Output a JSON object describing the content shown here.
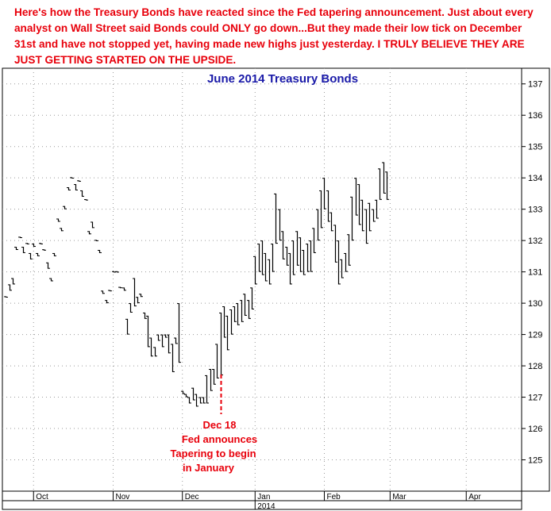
{
  "header": {
    "text": "Here's how the Treasury Bonds have reacted since the Fed tapering announcement. Just about every analyst on Wall Street said Bonds could ONLY go down...But they made their low tick on December 31st and have not stopped yet, having made new highs just yesterday. I TRULY BELIEVE THEY ARE JUST GETTING STARTED ON THE UPSIDE."
  },
  "chart_data": {
    "type": "ohlc",
    "title": "June 2014 Treasury Bonds",
    "ylim": [
      124,
      137.5
    ],
    "yticks": [
      125,
      126,
      127,
      128,
      129,
      130,
      131,
      132,
      133,
      134,
      135,
      136,
      137
    ],
    "x_months": [
      {
        "label": "Oct",
        "index": 8
      },
      {
        "label": "Nov",
        "index": 31
      },
      {
        "label": "Dec",
        "index": 51
      },
      {
        "label": "Jan",
        "index": 72
      },
      {
        "label": "Feb",
        "index": 92
      },
      {
        "label": "Mar",
        "index": 111
      },
      {
        "label": "Apr",
        "index": 133
      }
    ],
    "x_year": {
      "label": "2014",
      "index": 72
    },
    "x_range": [
      -1,
      149
    ],
    "grid": true,
    "bar_color": "#000000",
    "annotation_color": "#e8000b",
    "annotation": {
      "index": 62,
      "price": 127.8,
      "lines": [
        "Dec 18",
        "Fed announces",
        "Tapering to begin",
        "in January"
      ]
    },
    "bars": [
      {
        "i": 0,
        "h": 130.2,
        "l": 130.2
      },
      {
        "i": 1,
        "h": 130.6,
        "l": 130.4
      },
      {
        "i": 2,
        "h": 130.8,
        "l": 130.6
      },
      {
        "i": 3,
        "h": 131.8,
        "l": 131.7
      },
      {
        "i": 4,
        "h": 132.1,
        "l": 132.1
      },
      {
        "i": 5,
        "h": 131.8,
        "l": 131.6
      },
      {
        "i": 6,
        "h": 131.9,
        "l": 131.9
      },
      {
        "i": 7,
        "h": 131.6,
        "l": 131.4
      },
      {
        "i": 8,
        "h": 131.9,
        "l": 131.8
      },
      {
        "i": 9,
        "h": 131.6,
        "l": 131.5
      },
      {
        "i": 10,
        "h": 131.9,
        "l": 131.9
      },
      {
        "i": 11,
        "h": 131.7,
        "l": 131.7
      },
      {
        "i": 12,
        "h": 131.3,
        "l": 131.1
      },
      {
        "i": 13,
        "h": 130.8,
        "l": 130.7
      },
      {
        "i": 14,
        "h": 131.6,
        "l": 131.5
      },
      {
        "i": 15,
        "h": 132.7,
        "l": 132.6
      },
      {
        "i": 16,
        "h": 132.4,
        "l": 132.3
      },
      {
        "i": 17,
        "h": 133.1,
        "l": 133.0
      },
      {
        "i": 18,
        "h": 133.7,
        "l": 133.6
      },
      {
        "i": 19,
        "h": 134.0,
        "l": 134.0
      },
      {
        "i": 20,
        "h": 133.8,
        "l": 133.6
      },
      {
        "i": 21,
        "h": 133.9,
        "l": 133.9
      },
      {
        "i": 22,
        "h": 133.6,
        "l": 133.4
      },
      {
        "i": 23,
        "h": 133.3,
        "l": 133.3
      },
      {
        "i": 24,
        "h": 132.3,
        "l": 132.2
      },
      {
        "i": 25,
        "h": 132.6,
        "l": 132.4
      },
      {
        "i": 26,
        "h": 132.0,
        "l": 132.0
      },
      {
        "i": 27,
        "h": 131.7,
        "l": 131.6
      },
      {
        "i": 28,
        "h": 130.4,
        "l": 130.3
      },
      {
        "i": 29,
        "h": 130.1,
        "l": 130.0
      },
      {
        "i": 30,
        "h": 130.4,
        "l": 130.4
      },
      {
        "i": 31,
        "h": 131.0,
        "l": 131.0
      },
      {
        "i": 32,
        "h": 131.0,
        "l": 131.0
      },
      {
        "i": 33,
        "h": 130.5,
        "l": 130.5
      },
      {
        "i": 34,
        "h": 130.5,
        "l": 130.4
      },
      {
        "i": 35,
        "h": 129.5,
        "l": 129.0
      },
      {
        "i": 36,
        "h": 130.0,
        "l": 129.7
      },
      {
        "i": 37,
        "h": 130.8,
        "l": 129.9
      },
      {
        "i": 38,
        "h": 130.2,
        "l": 130.0
      },
      {
        "i": 39,
        "h": 130.3,
        "l": 130.2
      },
      {
        "i": 40,
        "h": 129.7,
        "l": 129.5
      },
      {
        "i": 41,
        "h": 129.6,
        "l": 128.6
      },
      {
        "i": 42,
        "h": 128.9,
        "l": 128.3
      },
      {
        "i": 43,
        "h": 128.6,
        "l": 128.3
      },
      {
        "i": 44,
        "h": 129.0,
        "l": 128.8
      },
      {
        "i": 45,
        "h": 129.0,
        "l": 128.6
      },
      {
        "i": 46,
        "h": 129.0,
        "l": 128.9
      },
      {
        "i": 47,
        "h": 129.0,
        "l": 128.4
      },
      {
        "i": 48,
        "h": 128.7,
        "l": 127.8
      },
      {
        "i": 49,
        "h": 128.9,
        "l": 128.7
      },
      {
        "i": 50,
        "h": 130.0,
        "l": 128.1
      },
      {
        "i": 51,
        "h": 127.2,
        "l": 127.1
      },
      {
        "i": 52,
        "h": 127.1,
        "l": 127.0
      },
      {
        "i": 53,
        "h": 127.0,
        "l": 126.8
      },
      {
        "i": 54,
        "h": 127.3,
        "l": 126.9
      },
      {
        "i": 55,
        "h": 127.1,
        "l": 126.7
      },
      {
        "i": 56,
        "h": 127.0,
        "l": 126.8
      },
      {
        "i": 57,
        "h": 127.0,
        "l": 126.8
      },
      {
        "i": 58,
        "h": 127.7,
        "l": 126.8
      },
      {
        "i": 59,
        "h": 127.9,
        "l": 127.2
      },
      {
        "i": 60,
        "h": 127.9,
        "l": 127.4
      },
      {
        "i": 61,
        "h": 128.7,
        "l": 127.6
      },
      {
        "i": 62,
        "h": 129.7,
        "l": 127.7
      },
      {
        "i": 63,
        "h": 129.9,
        "l": 128.9
      },
      {
        "i": 64,
        "h": 129.6,
        "l": 128.5
      },
      {
        "i": 65,
        "h": 129.8,
        "l": 129.0
      },
      {
        "i": 66,
        "h": 129.9,
        "l": 129.4
      },
      {
        "i": 67,
        "h": 130.0,
        "l": 129.3
      },
      {
        "i": 68,
        "h": 130.1,
        "l": 129.4
      },
      {
        "i": 69,
        "h": 130.3,
        "l": 129.6
      },
      {
        "i": 70,
        "h": 130.1,
        "l": 129.5
      },
      {
        "i": 71,
        "h": 130.5,
        "l": 129.8
      },
      {
        "i": 72,
        "h": 131.5,
        "l": 130.6
      },
      {
        "i": 73,
        "h": 131.9,
        "l": 131.0
      },
      {
        "i": 74,
        "h": 132.0,
        "l": 130.9
      },
      {
        "i": 75,
        "h": 131.6,
        "l": 130.7
      },
      {
        "i": 76,
        "h": 131.4,
        "l": 130.6
      },
      {
        "i": 77,
        "h": 131.9,
        "l": 131.0
      },
      {
        "i": 78,
        "h": 133.5,
        "l": 131.9
      },
      {
        "i": 79,
        "h": 133.0,
        "l": 132.0
      },
      {
        "i": 80,
        "h": 132.3,
        "l": 131.4
      },
      {
        "i": 81,
        "h": 131.8,
        "l": 131.2
      },
      {
        "i": 82,
        "h": 131.6,
        "l": 130.6
      },
      {
        "i": 83,
        "h": 132.0,
        "l": 130.9
      },
      {
        "i": 84,
        "h": 132.3,
        "l": 131.2
      },
      {
        "i": 85,
        "h": 132.1,
        "l": 131.0
      },
      {
        "i": 86,
        "h": 131.7,
        "l": 130.9
      },
      {
        "i": 87,
        "h": 131.9,
        "l": 131.0
      },
      {
        "i": 88,
        "h": 132.0,
        "l": 131.0
      },
      {
        "i": 89,
        "h": 132.4,
        "l": 131.6
      },
      {
        "i": 90,
        "h": 133.0,
        "l": 132.0
      },
      {
        "i": 91,
        "h": 133.6,
        "l": 132.4
      },
      {
        "i": 92,
        "h": 134.0,
        "l": 133.0
      },
      {
        "i": 93,
        "h": 133.6,
        "l": 132.6
      },
      {
        "i": 94,
        "h": 132.9,
        "l": 132.3
      },
      {
        "i": 95,
        "h": 132.5,
        "l": 131.3
      },
      {
        "i": 96,
        "h": 132.0,
        "l": 130.6
      },
      {
        "i": 97,
        "h": 131.4,
        "l": 130.8
      },
      {
        "i": 98,
        "h": 131.6,
        "l": 131.0
      },
      {
        "i": 99,
        "h": 132.2,
        "l": 131.2
      },
      {
        "i": 100,
        "h": 133.4,
        "l": 132.0
      },
      {
        "i": 101,
        "h": 134.0,
        "l": 132.8
      },
      {
        "i": 102,
        "h": 133.8,
        "l": 132.5
      },
      {
        "i": 103,
        "h": 133.3,
        "l": 132.3
      },
      {
        "i": 104,
        "h": 133.0,
        "l": 131.9
      },
      {
        "i": 105,
        "h": 133.2,
        "l": 132.3
      },
      {
        "i": 106,
        "h": 133.0,
        "l": 132.6
      },
      {
        "i": 107,
        "h": 133.3,
        "l": 132.7
      },
      {
        "i": 108,
        "h": 134.3,
        "l": 133.3
      },
      {
        "i": 109,
        "h": 134.5,
        "l": 133.5
      },
      {
        "i": 110,
        "h": 134.2,
        "l": 133.3
      }
    ]
  }
}
